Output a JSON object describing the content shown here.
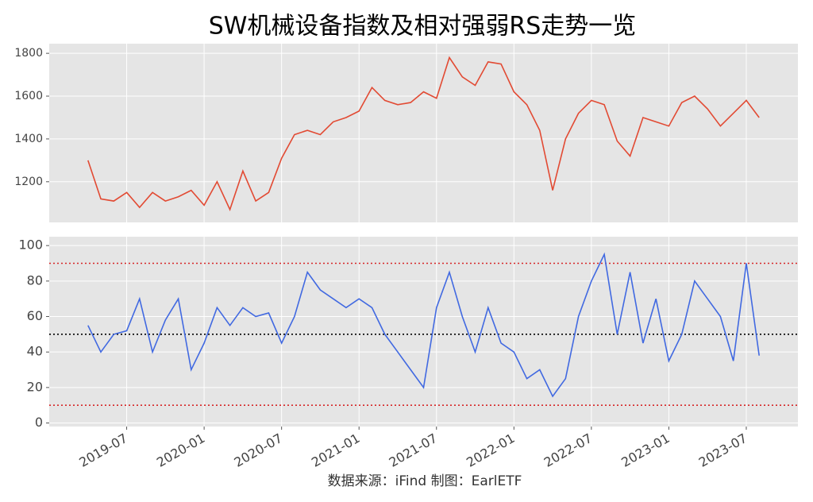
{
  "title": "SW机械设备指数及相对强弱RS走势一览",
  "source": "数据来源：iFind 制图：EarlETF",
  "chart_data": [
    {
      "type": "line",
      "x": [
        "2019-04",
        "2019-05",
        "2019-06",
        "2019-07",
        "2019-08",
        "2019-09",
        "2019-10",
        "2019-11",
        "2019-12",
        "2020-01",
        "2020-02",
        "2020-03",
        "2020-04",
        "2020-05",
        "2020-06",
        "2020-07",
        "2020-08",
        "2020-09",
        "2020-10",
        "2020-11",
        "2020-12",
        "2021-01",
        "2021-02",
        "2021-03",
        "2021-04",
        "2021-05",
        "2021-06",
        "2021-07",
        "2021-08",
        "2021-09",
        "2021-10",
        "2021-11",
        "2021-12",
        "2022-01",
        "2022-02",
        "2022-03",
        "2022-04",
        "2022-05",
        "2022-06",
        "2022-07",
        "2022-08",
        "2022-09",
        "2022-10",
        "2022-11",
        "2022-12",
        "2023-01",
        "2023-02",
        "2023-03",
        "2023-04",
        "2023-05",
        "2023-06",
        "2023-07",
        "2023-08"
      ],
      "series": [
        {
          "color": "#e24a33",
          "values": [
            1300,
            1120,
            1110,
            1150,
            1080,
            1150,
            1110,
            1130,
            1160,
            1090,
            1200,
            1070,
            1250,
            1110,
            1150,
            1310,
            1420,
            1440,
            1420,
            1480,
            1500,
            1530,
            1640,
            1580,
            1560,
            1570,
            1620,
            1590,
            1780,
            1690,
            1650,
            1760,
            1750,
            1620,
            1560,
            1440,
            1160,
            1400,
            1520,
            1580,
            1560,
            1390,
            1320,
            1500,
            1480,
            1460,
            1570,
            1600,
            1540,
            1460,
            1520,
            1580,
            1500
          ]
        }
      ],
      "xlim": [
        "2019-01",
        "2023-11"
      ],
      "ylim": [
        1010,
        1845
      ],
      "yticks": [
        1200,
        1400,
        1600,
        1800
      ],
      "grid": true
    },
    {
      "type": "line",
      "x": [
        "2019-04",
        "2019-05",
        "2019-06",
        "2019-07",
        "2019-08",
        "2019-09",
        "2019-10",
        "2019-11",
        "2019-12",
        "2020-01",
        "2020-02",
        "2020-03",
        "2020-04",
        "2020-05",
        "2020-06",
        "2020-07",
        "2020-08",
        "2020-09",
        "2020-10",
        "2020-11",
        "2020-12",
        "2021-01",
        "2021-02",
        "2021-03",
        "2021-04",
        "2021-05",
        "2021-06",
        "2021-07",
        "2021-08",
        "2021-09",
        "2021-10",
        "2021-11",
        "2021-12",
        "2022-01",
        "2022-02",
        "2022-03",
        "2022-04",
        "2022-05",
        "2022-06",
        "2022-07",
        "2022-08",
        "2022-09",
        "2022-10",
        "2022-11",
        "2022-12",
        "2023-01",
        "2023-02",
        "2023-03",
        "2023-04",
        "2023-05",
        "2023-06",
        "2023-07",
        "2023-08"
      ],
      "series": [
        {
          "color": "#4169e1",
          "values": [
            55,
            40,
            50,
            52,
            70,
            40,
            58,
            70,
            30,
            45,
            65,
            55,
            65,
            60,
            62,
            45,
            60,
            85,
            75,
            70,
            65,
            70,
            65,
            50,
            40,
            30,
            20,
            65,
            85,
            60,
            40,
            65,
            45,
            40,
            25,
            30,
            15,
            25,
            60,
            80,
            95,
            50,
            85,
            45,
            70,
            35,
            50,
            80,
            70,
            60,
            35,
            90,
            38
          ]
        }
      ],
      "xlim": [
        "2019-01",
        "2023-11"
      ],
      "xticks": [
        "2019-07",
        "2020-01",
        "2020-07",
        "2021-01",
        "2021-07",
        "2022-01",
        "2022-07",
        "2023-01",
        "2023-07"
      ],
      "ylim": [
        -2,
        105
      ],
      "yticks": [
        0,
        20,
        40,
        60,
        80,
        100
      ],
      "grid": true,
      "hlines": [
        {
          "value": 90,
          "color": "#d62728"
        },
        {
          "value": 50,
          "color": "#000000"
        },
        {
          "value": 10,
          "color": "#d62728"
        }
      ]
    }
  ]
}
